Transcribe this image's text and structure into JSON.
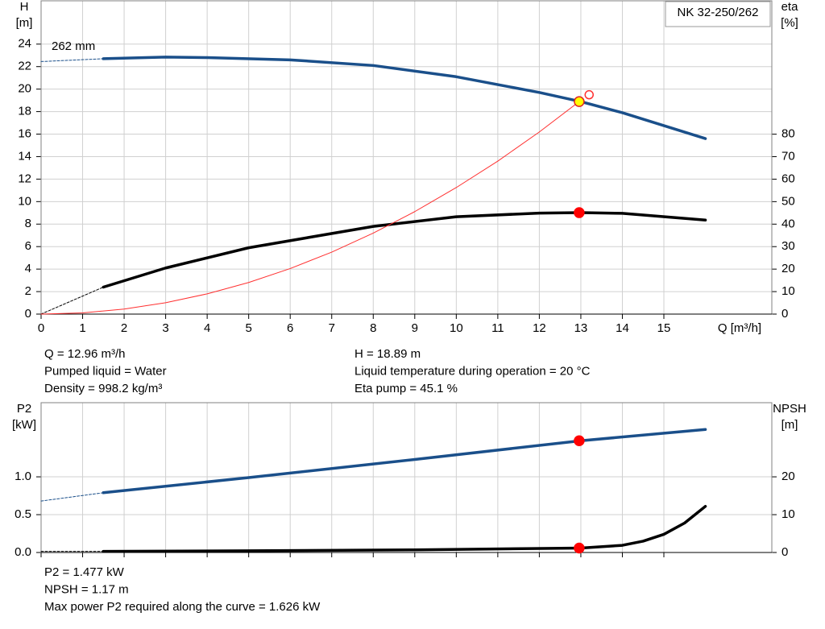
{
  "chart_data": [
    {
      "type": "line",
      "title": "NK 32-250/262",
      "ylabel": [
        "H",
        "[m]"
      ],
      "y2label": [
        "eta",
        "[%]"
      ],
      "xlabel": "Q [m³/h]",
      "annotation": "262 mm",
      "show_xtick_labels": true,
      "xlim": [
        0,
        17.6
      ],
      "xticks": [
        0,
        1,
        2,
        3,
        4,
        5,
        6,
        7,
        8,
        9,
        10,
        11,
        12,
        13,
        14,
        15
      ],
      "ylim": [
        0,
        27.85
      ],
      "yticks": [
        0,
        2,
        4,
        6,
        8,
        10,
        12,
        14,
        16,
        18,
        20,
        22,
        24
      ],
      "y2lim": [
        0,
        139.3
      ],
      "y2ticks": [
        0,
        10,
        20,
        30,
        40,
        50,
        60,
        70,
        80
      ],
      "grid": true,
      "series": [
        {
          "color": "#1a4f8a",
          "style": "dashed",
          "x": [
            0,
            1.5
          ],
          "values": [
            22.45,
            22.7
          ]
        },
        {
          "color": "#1a4f8a",
          "style": "solid",
          "x": [
            1.5,
            3,
            4,
            6,
            8,
            10,
            12,
            13,
            14,
            16
          ],
          "values": [
            22.7,
            22.85,
            22.8,
            22.6,
            22.1,
            21.1,
            19.7,
            18.89,
            17.9,
            15.6
          ]
        },
        {
          "color": "#000000",
          "style": "dashed",
          "axis": "y2",
          "x": [
            0,
            1.5
          ],
          "values": [
            0,
            12
          ]
        },
        {
          "color": "#000000",
          "style": "solid",
          "axis": "y2",
          "x": [
            1.5,
            3,
            5,
            8,
            10,
            12,
            13,
            14,
            16
          ],
          "values": [
            12,
            20.5,
            29.5,
            39,
            43.3,
            44.9,
            45.1,
            44.8,
            41.8
          ]
        },
        {
          "color": "#ff3030",
          "style": "thin",
          "x": [
            0,
            1,
            2,
            3,
            4,
            5,
            6,
            7,
            8,
            9,
            10,
            11,
            12,
            12.96
          ],
          "values": [
            0,
            0.11,
            0.45,
            1.01,
            1.8,
            2.81,
            4.05,
            5.51,
            7.2,
            9.11,
            11.25,
            13.6,
            16.19,
            18.89
          ]
        }
      ],
      "markers": [
        {
          "x": 13.2,
          "y": 19.5,
          "fill": "none",
          "stroke": "#ff3030"
        },
        {
          "x": 12.96,
          "y": 18.89,
          "fill": "#ffff00",
          "stroke": "#e02020"
        },
        {
          "x": 12.96,
          "y": 45.1,
          "axis": "y2",
          "fill": "#ff0000",
          "stroke": "#ff0000"
        }
      ],
      "info_left": [
        "Q = 12.96 m³/h",
        "Pumped liquid = Water",
        "Density = 998.2 kg/m³"
      ],
      "info_right": [
        "H = 18.89 m",
        "Liquid temperature during operation = 20 °C",
        "Eta pump = 45.1 %"
      ]
    },
    {
      "type": "line",
      "ylabel": [
        "P2",
        "[kW]"
      ],
      "y2label": [
        "NPSH",
        "[m]"
      ],
      "show_xtick_labels": false,
      "xlim": [
        0,
        17.6
      ],
      "xticks": [
        0,
        1,
        2,
        3,
        4,
        5,
        6,
        7,
        8,
        9,
        10,
        11,
        12,
        13,
        14,
        15
      ],
      "ylim": [
        0,
        1.98
      ],
      "yticks": [
        {
          "value": 0,
          "label": "0.0"
        },
        0.5,
        {
          "value": 1,
          "label": "1.0"
        }
      ],
      "y2lim": [
        0,
        39.6
      ],
      "y2ticks": [
        0,
        10,
        20
      ],
      "grid": true,
      "series": [
        {
          "color": "#1a4f8a",
          "style": "dashed",
          "x": [
            0,
            1.5
          ],
          "values": [
            0.68,
            0.79
          ]
        },
        {
          "color": "#1a4f8a",
          "style": "solid",
          "x": [
            1.5,
            5,
            9,
            13,
            16
          ],
          "values": [
            0.79,
            0.99,
            1.23,
            1.477,
            1.626
          ]
        },
        {
          "color": "#000000",
          "style": "dashed",
          "axis": "y2",
          "x": [
            0,
            1.5
          ],
          "values": [
            0.3,
            0.3
          ]
        },
        {
          "color": "#000000",
          "style": "solid",
          "axis": "y2",
          "x": [
            1.5,
            5,
            9,
            13,
            14,
            14.5,
            15,
            15.5,
            16
          ],
          "values": [
            0.3,
            0.45,
            0.7,
            1.17,
            1.9,
            3,
            4.8,
            7.8,
            12.2
          ]
        }
      ],
      "markers": [
        {
          "x": 12.96,
          "y": 1.477,
          "fill": "#ff0000",
          "stroke": "#ff0000"
        },
        {
          "x": 12.96,
          "y": 1.17,
          "axis": "y2",
          "fill": "#ff0000",
          "stroke": "#ff0000"
        }
      ],
      "footer": [
        "P2 = 1.477 kW",
        "NPSH = 1.17 m",
        "Max power P2 required along the curve = 1.626 kW"
      ]
    }
  ]
}
